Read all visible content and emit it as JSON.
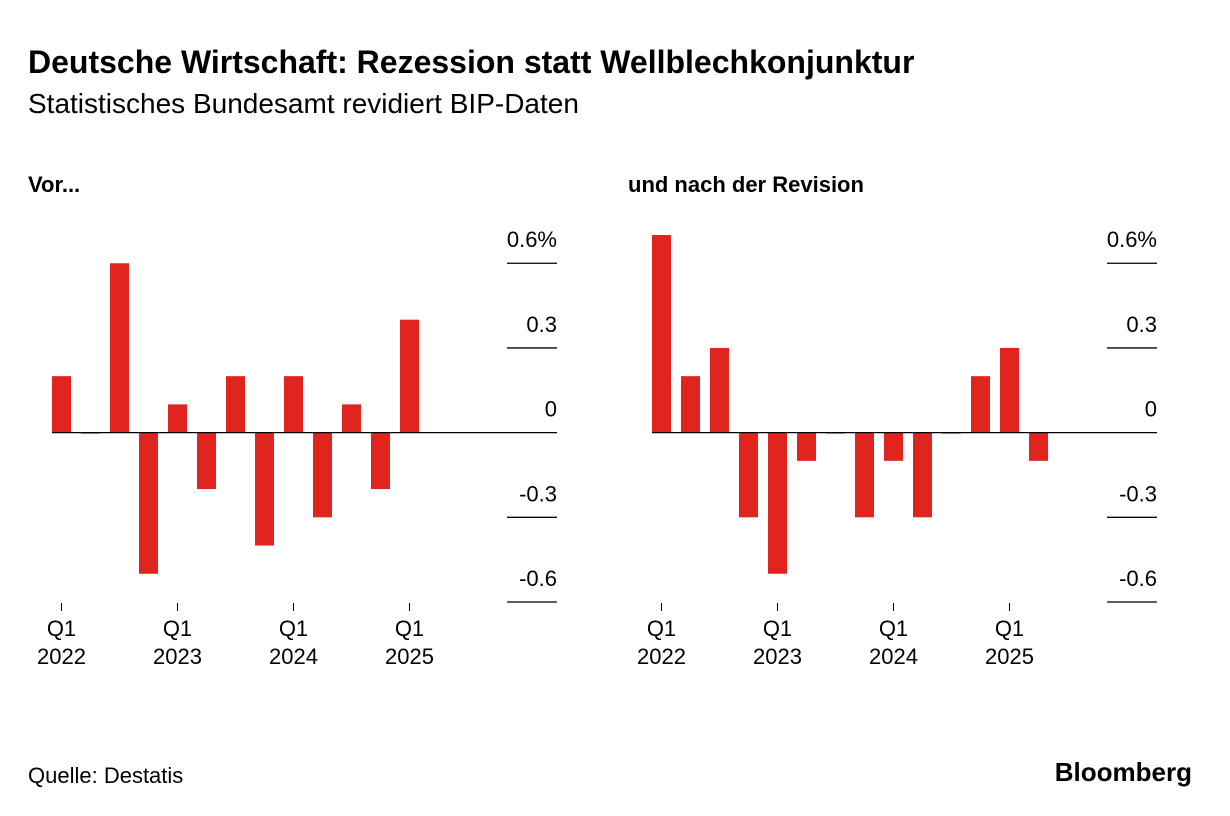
{
  "header": {
    "title": "Deutsche Wirtschaft: Rezession statt Wellblechkonjunktur",
    "subtitle": "Statistisches Bundesamt revidiert BIP-Daten"
  },
  "chart_data": [
    {
      "type": "bar",
      "title": "Vor...",
      "color": "#e0251f",
      "categories": [
        [
          "Q1",
          "2022"
        ],
        null,
        null,
        null,
        [
          "Q1",
          "2023"
        ],
        null,
        null,
        null,
        [
          "Q1",
          "2024"
        ],
        null,
        null,
        null,
        [
          "Q1",
          "2025"
        ]
      ],
      "values": [
        0.2,
        0,
        0.6,
        -0.5,
        0.1,
        -0.2,
        0.2,
        -0.4,
        0.2,
        -0.3,
        0.1,
        -0.2,
        0.4
      ],
      "ylim": [
        -0.6,
        0.7
      ],
      "yticks": [
        {
          "value": 0.6,
          "label": "0.6%"
        },
        0.3,
        0,
        -0.3,
        -0.6
      ]
    },
    {
      "type": "bar",
      "title": "und nach der Revision",
      "color": "#e0251f",
      "categories": [
        [
          "Q1",
          "2022"
        ],
        null,
        null,
        null,
        [
          "Q1",
          "2023"
        ],
        null,
        null,
        null,
        [
          "Q1",
          "2024"
        ],
        null,
        null,
        null,
        [
          "Q1",
          "2025"
        ],
        null
      ],
      "values": [
        0.7,
        0.2,
        0.3,
        -0.3,
        -0.5,
        -0.1,
        0,
        -0.3,
        -0.1,
        -0.3,
        0,
        0.2,
        0.3,
        -0.1
      ],
      "ylim": [
        -0.6,
        0.7
      ],
      "yticks": [
        {
          "value": 0.6,
          "label": "0.6%"
        },
        0.3,
        0,
        -0.3,
        -0.6
      ]
    }
  ],
  "footer": {
    "source": "Quelle: Destatis",
    "brand": "Bloomberg"
  }
}
